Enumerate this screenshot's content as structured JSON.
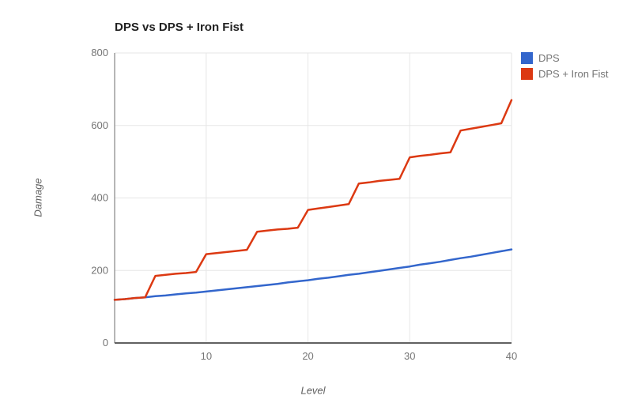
{
  "title": "DPS vs DPS + Iron Fist",
  "legend": {
    "items": [
      {
        "label": "DPS",
        "color": "#3366cc"
      },
      {
        "label": "DPS + Iron Fist",
        "color": "#dc3912"
      }
    ]
  },
  "chart_data": {
    "type": "line",
    "title": "DPS vs DPS + Iron Fist",
    "xlabel": "Level",
    "ylabel": "Damage",
    "xlim": [
      1,
      40
    ],
    "ylim": [
      0,
      800
    ],
    "x_ticks": [
      10,
      20,
      30,
      40
    ],
    "y_ticks": [
      0,
      200,
      400,
      600,
      800
    ],
    "grid": true,
    "legend_position": "top-right",
    "x": [
      1,
      2,
      3,
      4,
      5,
      6,
      7,
      8,
      9,
      10,
      11,
      12,
      13,
      14,
      15,
      16,
      17,
      18,
      19,
      20,
      21,
      22,
      23,
      24,
      25,
      26,
      27,
      28,
      29,
      30,
      31,
      32,
      33,
      34,
      35,
      36,
      37,
      38,
      39,
      40
    ],
    "series": [
      {
        "name": "DPS",
        "color": "#3366cc",
        "values": [
          119,
          121,
          124,
          126,
          129,
          131,
          134,
          137,
          139,
          142,
          145,
          148,
          151,
          154,
          157,
          160,
          163,
          167,
          170,
          173,
          177,
          180,
          184,
          188,
          191,
          195,
          199,
          203,
          207,
          211,
          216,
          220,
          224,
          229,
          234,
          238,
          243,
          248,
          253,
          258
        ]
      },
      {
        "name": "DPS + Iron Fist",
        "color": "#dc3912",
        "values": [
          119,
          121,
          124,
          126,
          185,
          188,
          191,
          193,
          196,
          245,
          248,
          251,
          254,
          257,
          307,
          310,
          313,
          315,
          318,
          367,
          371,
          375,
          379,
          383,
          440,
          443,
          447,
          450,
          453,
          512,
          516,
          519,
          523,
          526,
          586,
          591,
          596,
          601,
          606,
          670
        ]
      }
    ]
  }
}
